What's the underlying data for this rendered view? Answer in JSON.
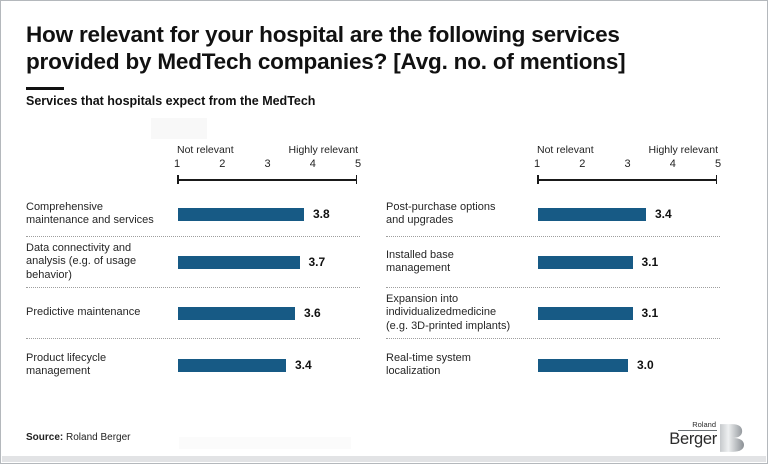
{
  "header": {
    "title_line1": "How relevant for your hospital are the following services",
    "title_line2": "provided by MedTech companies? [Avg. no. of mentions]",
    "subtitle": "Services that hospitals expect from the MedTech"
  },
  "scale": {
    "min_label": "Not relevant",
    "max_label": "Highly relevant",
    "ticks": [
      "1",
      "2",
      "3",
      "4",
      "5"
    ]
  },
  "chart_data": {
    "type": "bar",
    "orientation": "horizontal",
    "title": "How relevant for your hospital are the following services provided by MedTech companies? [Avg. no. of mentions]",
    "subtitle": "Services that hospitals expect from the MedTech",
    "xlim": [
      1,
      5
    ],
    "x_min_label": "Not relevant",
    "x_max_label": "Highly relevant",
    "tick_values": [
      1,
      2,
      3,
      4,
      5
    ],
    "grid": false,
    "legend": false,
    "columns": [
      {
        "items": [
          {
            "label": "Comprehensive\nmaintenance and services",
            "value": 3.8,
            "value_label": "3.8"
          },
          {
            "label": "Data connectivity and\nanalysis (e.g. of usage\nbehavior)",
            "value": 3.7,
            "value_label": "3.7"
          },
          {
            "label": "Predictive maintenance",
            "value": 3.6,
            "value_label": "3.6"
          },
          {
            "label": "Product lifecycle\nmanagement",
            "value": 3.4,
            "value_label": "3.4"
          }
        ]
      },
      {
        "items": [
          {
            "label": "Post-purchase options\nand upgrades",
            "value": 3.4,
            "value_label": "3.4"
          },
          {
            "label": "Installed base\nmanagement",
            "value": 3.1,
            "value_label": "3.1"
          },
          {
            "label": "Expansion into\nindividualizedmedicine\n(e.g. 3D-printed implants)",
            "value": 3.1,
            "value_label": "3.1"
          },
          {
            "label": "Real-time system\nlocalization",
            "value": 3.0,
            "value_label": "3.0"
          }
        ]
      }
    ]
  },
  "footer": {
    "source_label": "Source:",
    "source_value": " Roland Berger"
  },
  "logo": {
    "line1": "Roland",
    "line2": "Berger"
  },
  "colors": {
    "bar": "#175a85",
    "axis": "#1a1a1a",
    "separator": "#9e9e9e",
    "footer_strip": "#e2e3e5"
  }
}
